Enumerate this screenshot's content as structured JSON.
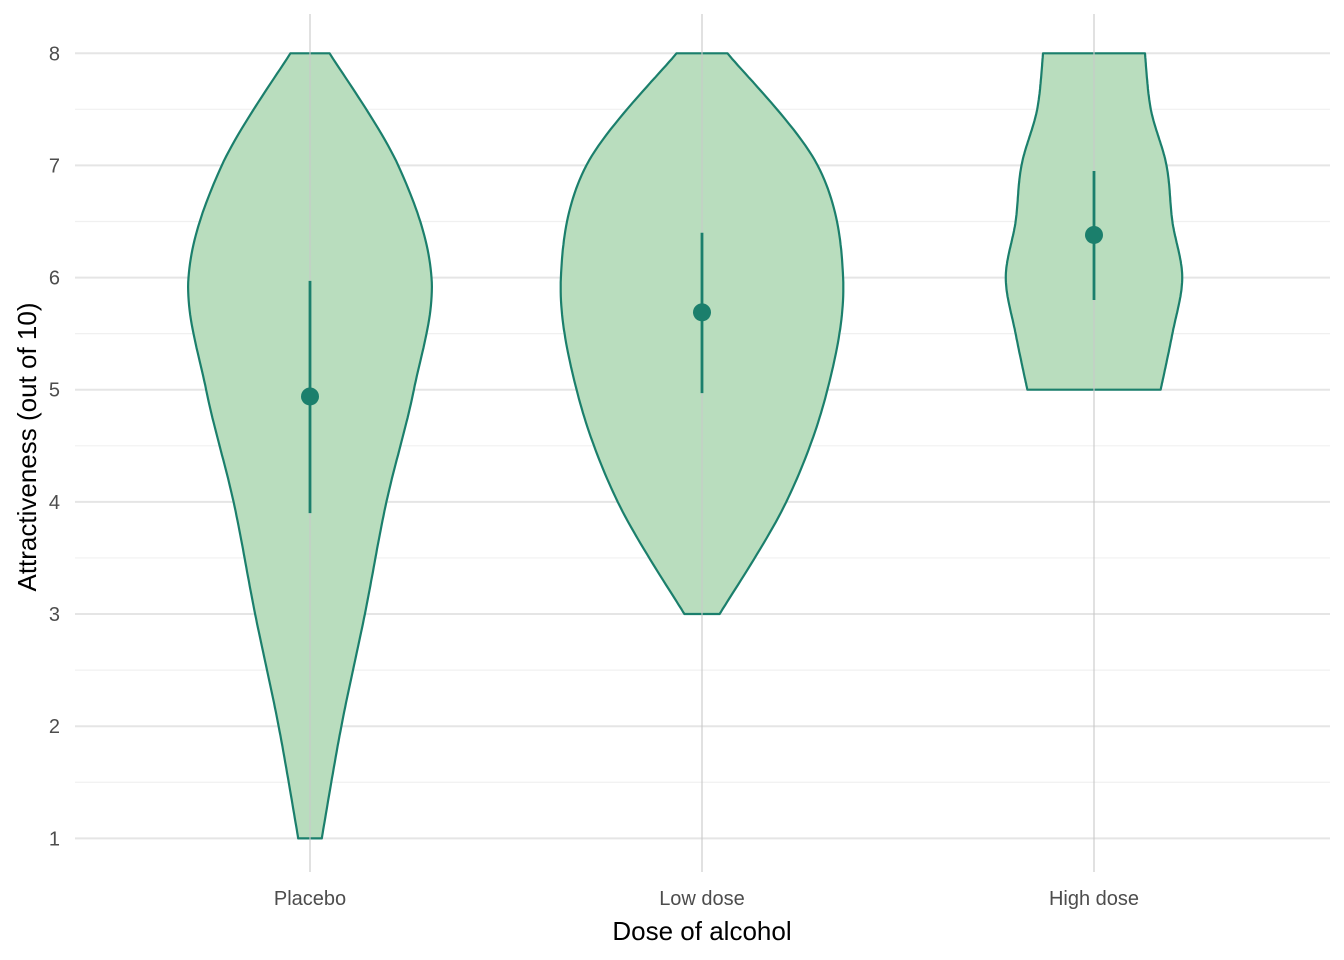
{
  "chart_data": {
    "type": "violin",
    "xlabel": "Dose of alcohol",
    "ylabel": "Attractiveness (out of 10)",
    "ylim": [
      0.7,
      8.35
    ],
    "yticks": [
      1,
      2,
      3,
      4,
      5,
      6,
      7,
      8
    ],
    "categories": [
      "Placebo",
      "Low dose",
      "High dose"
    ],
    "grid": true,
    "colors": {
      "fill": "#b9ddbe",
      "stroke": "#1b7f6c",
      "grid_major": "#e5e5e5",
      "grid_minor": "#f0f0f0",
      "text": "#4d4d4d"
    },
    "groups": [
      {
        "category": "Placebo",
        "min": 1,
        "max": 8,
        "mean": 4.94,
        "ci_low": 3.9,
        "ci_high": 5.97,
        "density": [
          [
            1,
            0.06
          ],
          [
            2,
            0.16
          ],
          [
            3,
            0.28
          ],
          [
            4,
            0.39
          ],
          [
            5,
            0.53
          ],
          [
            6,
            0.62
          ],
          [
            7,
            0.45
          ],
          [
            8,
            0.1
          ]
        ]
      },
      {
        "category": "Low dose",
        "min": 3,
        "max": 8,
        "mean": 5.69,
        "ci_low": 4.97,
        "ci_high": 6.4,
        "density": [
          [
            3,
            0.09
          ],
          [
            4,
            0.43
          ],
          [
            5,
            0.64
          ],
          [
            6,
            0.72
          ],
          [
            7,
            0.59
          ],
          [
            8,
            0.13
          ]
        ]
      },
      {
        "category": "High dose",
        "min": 5,
        "max": 8,
        "mean": 6.38,
        "ci_low": 5.8,
        "ci_high": 6.95,
        "density": [
          [
            5,
            0.34
          ],
          [
            5.5,
            0.4
          ],
          [
            6,
            0.45
          ],
          [
            6.5,
            0.4
          ],
          [
            7,
            0.37
          ],
          [
            7.5,
            0.29
          ],
          [
            8,
            0.26
          ]
        ]
      }
    ]
  }
}
